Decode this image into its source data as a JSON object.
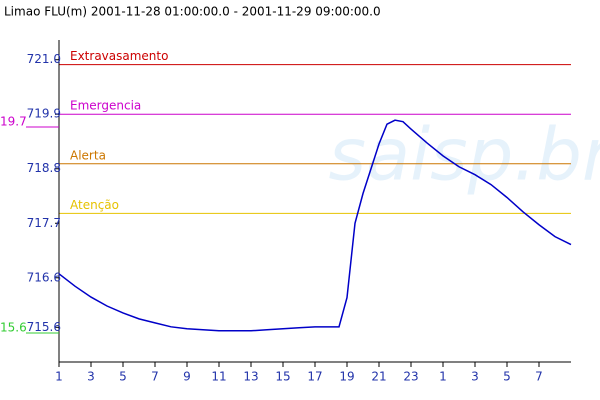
{
  "chart_data": {
    "type": "line",
    "title": "Limao FLU(m) 2001-11-28 01:00:00.0 - 2001-11-29 09:00:00.0",
    "watermark": "saisp.br",
    "x": [
      0,
      1,
      2,
      3,
      4,
      5,
      6,
      7,
      8,
      9,
      10,
      11,
      12,
      13,
      14,
      15,
      16,
      17,
      17.5,
      18,
      18.5,
      19,
      19.5,
      20,
      20.5,
      21,
      21.5,
      22,
      23,
      24,
      25,
      26,
      27,
      28,
      29,
      30,
      31,
      32
    ],
    "series": [
      {
        "name": "Limao FLU(m)",
        "color": "#0000c8",
        "values": [
          716.68,
          716.43,
          716.21,
          716.03,
          715.89,
          715.77,
          715.69,
          715.61,
          715.57,
          715.55,
          715.53,
          715.53,
          715.53,
          715.55,
          715.57,
          715.59,
          715.61,
          715.61,
          715.61,
          716.2,
          717.7,
          718.3,
          718.8,
          719.3,
          719.7,
          719.78,
          719.75,
          719.6,
          719.32,
          719.06,
          718.84,
          718.68,
          718.48,
          718.22,
          717.93,
          717.67,
          717.43,
          717.27
        ]
      }
    ],
    "thresholds": [
      {
        "label": "Extravasamento",
        "value": 720.9,
        "color": "#cc0000"
      },
      {
        "label": "Emergencia",
        "value": 719.9,
        "color": "#cc00cc"
      },
      {
        "label": "Alerta",
        "value": 718.9,
        "color": "#cc7700"
      },
      {
        "label": "Atenção",
        "value": 717.9,
        "color": "#e6c200"
      }
    ],
    "annotations": [
      {
        "text": "19.7",
        "color": "#cc00cc"
      },
      {
        "text": "15.6",
        "color": "#33cc33"
      }
    ],
    "xlim": [
      0,
      32
    ],
    "xticks": [
      {
        "value": 0,
        "label": "1"
      },
      {
        "value": 2,
        "label": "3"
      },
      {
        "value": 4,
        "label": "5"
      },
      {
        "value": 6,
        "label": "7"
      },
      {
        "value": 8,
        "label": "9"
      },
      {
        "value": 10,
        "label": "11"
      },
      {
        "value": 12,
        "label": "13"
      },
      {
        "value": 14,
        "label": "15"
      },
      {
        "value": 16,
        "label": "17"
      },
      {
        "value": 18,
        "label": "19"
      },
      {
        "value": 20,
        "label": "21"
      },
      {
        "value": 22,
        "label": "23"
      },
      {
        "value": 24,
        "label": "1"
      },
      {
        "value": 26,
        "label": "3"
      },
      {
        "value": 28,
        "label": "5"
      },
      {
        "value": 30,
        "label": "7"
      }
    ],
    "ylim": [
      714.9,
      721.6
    ],
    "yticks": [
      {
        "value": 721,
        "label": "721.0"
      },
      719.9,
      718.8,
      717.7,
      716.6,
      715.6
    ]
  }
}
